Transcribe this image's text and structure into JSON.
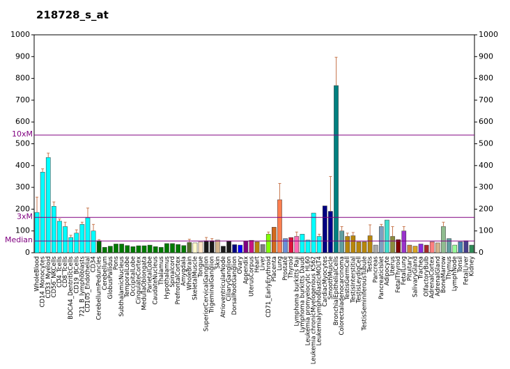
{
  "chart_data": {
    "type": "bar",
    "title": "218728_s_at",
    "categories": [
      "WholeBlood",
      "CD14_Monocytes",
      "CD33_Myeloid",
      "CD56_NKCells",
      "CD4_Tcells",
      "CD8_Tcells",
      "BDCA4_DentriticCells",
      "CD19_BCells",
      "721_B_lymphoblasts",
      "CD105_Endothelial",
      "CD34",
      "CerebellumPeduncles",
      "Cerebellum",
      "GlobusPallidus",
      "Pons",
      "SubthalamicNucleus",
      "TemporalLobe",
      "OccipitalLobe",
      "CingulateCortex",
      "MedullaOblongata",
      "ParietalLobe",
      "CaudateNucleus",
      "Thalamus",
      "Hypothalamus",
      "Spinalcord",
      "PrefrontalCortex",
      "Amygdala",
      "WholeBrain",
      "SkeletalMuscle",
      "Tongue",
      "SuperiorCervicalGanglion",
      "TrigeminalGanglion",
      "Skin",
      "AtrioventricularNode",
      "CiliaryGanglion",
      "DorsalRootGanglion",
      "Ovary",
      "Appendix",
      "UterusCorpus",
      "Heart",
      "Liver",
      "CD71_EarlyErythroid",
      "Placenta",
      "Lung",
      "Prostate",
      "Thyroid",
      "Lymphoma burkitts Raji",
      "Lymphoma burkitts Daudi",
      "Leukemia promyelocytic HL60",
      "Leukemia chronicMyelogenous K562",
      "LeukemialymphoblasticMOLT4",
      "CardiacMyocytes",
      "SmoothMuscle",
      "BronchialEpithelialCells",
      "Colorectaladenocarcinoma",
      "TestisGermCell",
      "TestisInterstitial",
      "TestisLeydigCell",
      "TestisSeminiferousTubule",
      "Testis",
      "Pancreas",
      "PancreaticIslet",
      "Adipocyte",
      "Uterus",
      "FetalThyroid",
      "FetalLung",
      "Pituitary",
      "SalivaryGland",
      "Trachea",
      "OlfactoryBulb",
      "AdrenalCortex",
      "AdrenalGland",
      "BoneMarrow",
      "Thymus",
      "LymphNode",
      "Tonsil",
      "FetalLiver",
      "Kidney"
    ],
    "values": [
      185,
      370,
      437,
      213,
      145,
      120,
      70,
      90,
      130,
      160,
      100,
      55,
      25,
      30,
      40,
      40,
      33,
      28,
      32,
      32,
      35,
      28,
      25,
      42,
      42,
      38,
      33,
      47,
      45,
      50,
      55,
      55,
      58,
      30,
      53,
      37,
      35,
      52,
      57,
      50,
      38,
      85,
      117,
      243,
      65,
      70,
      75,
      85,
      58,
      182,
      75,
      215,
      190,
      767,
      100,
      75,
      78,
      50,
      50,
      78,
      35,
      120,
      150,
      75,
      60,
      100,
      35,
      30,
      40,
      35,
      50,
      45,
      120,
      65,
      35,
      50,
      55,
      35
    ],
    "errors": [
      70,
      15,
      20,
      20,
      10,
      20,
      10,
      15,
      10,
      45,
      30,
      5,
      null,
      null,
      null,
      null,
      null,
      null,
      null,
      null,
      null,
      null,
      null,
      null,
      null,
      null,
      null,
      15,
      null,
      null,
      15,
      10,
      null,
      null,
      null,
      null,
      null,
      null,
      null,
      null,
      null,
      10,
      null,
      75,
      null,
      null,
      20,
      null,
      null,
      null,
      10,
      null,
      160,
      130,
      20,
      15,
      15,
      null,
      null,
      50,
      null,
      10,
      null,
      45,
      null,
      20,
      null,
      null,
      null,
      null,
      null,
      null,
      20,
      null,
      null,
      null,
      null,
      null
    ],
    "colors": [
      "#00ffff",
      "#00ffff",
      "#00ffff",
      "#00ffff",
      "#00ffff",
      "#00ffff",
      "#00ffff",
      "#00ffff",
      "#00ffff",
      "#00ffff",
      "#00ffff",
      "#006400",
      "#007a00",
      "#007a00",
      "#007a00",
      "#007a00",
      "#007a00",
      "#007a00",
      "#007a00",
      "#007a00",
      "#007a00",
      "#007a00",
      "#007a00",
      "#007a00",
      "#007a00",
      "#007a00",
      "#007a00",
      "#556b2f",
      "#fffacd",
      "#ffe4c4",
      "#1a1a1a",
      "#1a1a1a",
      "#d2b48c",
      "#1a1a1a",
      "#1a1a1a",
      "#000080",
      "#0000ff",
      "#800080",
      "#c71585",
      "#b8860b",
      "#808080",
      "#7fff00",
      "#d2691e",
      "#ff7f50",
      "#6a8fd8",
      "#dc143c",
      "#ff69b4",
      "#00ffff",
      "#00ffff",
      "#00ffff",
      "#00ffff",
      "#000080",
      "#00008b",
      "#008080",
      "#5f9ea0",
      "#b8860b",
      "#b8860b",
      "#b8860b",
      "#b8860b",
      "#b8860b",
      "#a9a9a9",
      "#7f9fbf",
      "#40e0d0",
      "#8b8b3d",
      "#800000",
      "#9932cc",
      "#cd853f",
      "#daa520",
      "#8a2be2",
      "#a52a2a",
      "#ff7f7f",
      "#d2b48c",
      "#8fbc8f",
      "#5f9ea0",
      "#98fb98",
      "#4682b4",
      "#483d8b",
      "#2e8b57"
    ],
    "reference_lines": [
      {
        "label": "10xM",
        "value": 540
      },
      {
        "label": "3xM",
        "value": 162
      },
      {
        "label": "Median",
        "value": 54
      }
    ],
    "reference_color": "#800080",
    "ylim": [
      0,
      1000
    ],
    "yticks": [
      0,
      100,
      200,
      300,
      400,
      500,
      600,
      700,
      800,
      900,
      1000
    ]
  }
}
